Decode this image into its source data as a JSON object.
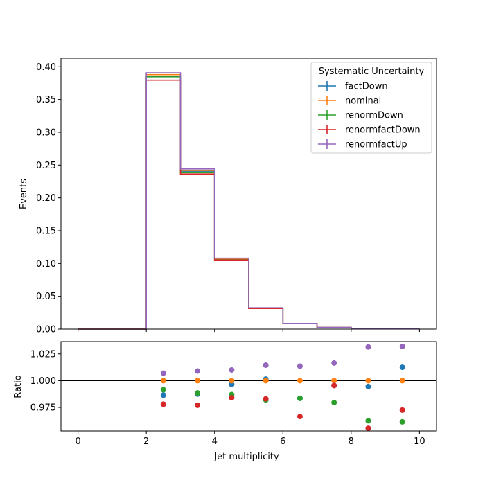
{
  "chart_data": [
    {
      "type": "line",
      "subtype": "step-histogram",
      "ylabel": "Events",
      "xlim": [
        -0.5,
        10.5
      ],
      "ylim": [
        0,
        0.413
      ],
      "yticks": [
        "0.00",
        "0.05",
        "0.10",
        "0.15",
        "0.20",
        "0.25",
        "0.30",
        "0.35",
        "0.40"
      ],
      "bin_edges": [
        0,
        1,
        2,
        3,
        4,
        5,
        6,
        7,
        8,
        9,
        10
      ],
      "legend": {
        "title": "Systematic Uncertainty",
        "placement": "top-right"
      },
      "series": [
        {
          "name": "factDown",
          "color": "#1f77b4",
          "values": [
            0,
            0,
            0.3854,
            0.2408,
            0.1068,
            0.0322,
            0.0085,
            0.0026,
            0.001,
            0.0003
          ]
        },
        {
          "name": "nominal",
          "color": "#ff7f0e",
          "values": [
            0,
            0,
            0.388,
            0.242,
            0.107,
            0.0321,
            0.0085,
            0.0026,
            0.001,
            0.0003
          ]
        },
        {
          "name": "renormDown",
          "color": "#2ca02c",
          "values": [
            0,
            0,
            0.3846,
            0.239,
            0.1056,
            0.0315,
            0.0084,
            0.0025,
            0.001,
            0.0003
          ]
        },
        {
          "name": "renormfactDown",
          "color": "#d62728",
          "values": [
            0,
            0,
            0.3795,
            0.2364,
            0.1053,
            0.0315,
            0.0082,
            0.0025,
            0.001,
            0.0003
          ]
        },
        {
          "name": "renormfactUp",
          "color": "#9467bd",
          "values": [
            0,
            0,
            0.3907,
            0.2442,
            0.1081,
            0.0326,
            0.0086,
            0.0026,
            0.001,
            0.0003
          ]
        }
      ]
    },
    {
      "type": "scatter",
      "xlabel": "Jet multiplicity",
      "ylabel": "Ratio",
      "xlim": [
        -0.5,
        10.5
      ],
      "ylim": [
        0.953,
        1.0365
      ],
      "yticks": [
        "0.975",
        "1.000",
        "1.025"
      ],
      "xticks": [
        "0",
        "2",
        "4",
        "6",
        "8",
        "10"
      ],
      "reference_line": 1.0,
      "x": [
        2.5,
        3.5,
        4.5,
        5.5,
        6.5,
        7.5,
        8.5,
        9.5
      ],
      "series": [
        {
          "name": "factDown",
          "color": "#1f77b4",
          "values": [
            0.9865,
            0.9875,
            0.9965,
            1.0015,
            0.9835,
            0.9955,
            0.9945,
            1.0125
          ]
        },
        {
          "name": "nominal",
          "color": "#ff7f0e",
          "values": [
            1.0,
            1.0,
            1.0,
            1.0,
            1.0,
            1.0,
            1.0,
            1.0
          ]
        },
        {
          "name": "renormDown",
          "color": "#2ca02c",
          "values": [
            0.9915,
            0.9885,
            0.987,
            0.982,
            0.9835,
            0.9795,
            0.9625,
            0.9615
          ]
        },
        {
          "name": "renormfactDown",
          "color": "#d62728",
          "values": [
            0.978,
            0.977,
            0.984,
            0.983,
            0.9665,
            0.9955,
            0.9555,
            0.9725
          ]
        },
        {
          "name": "renormfactUp",
          "color": "#9467bd",
          "values": [
            1.007,
            1.009,
            1.01,
            1.0145,
            1.0135,
            1.0165,
            1.0315,
            1.032
          ]
        }
      ]
    }
  ]
}
